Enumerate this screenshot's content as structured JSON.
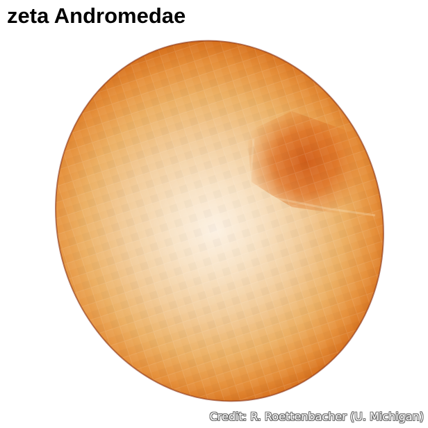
{
  "title": "zeta Andromedae",
  "credit": "Credit: R. Roettenbacher (U. Michigan)",
  "colors": {
    "background": "#ffffff",
    "title_text": "#000000",
    "star_highlight": "#fbeedd",
    "star_mid": "#f1c58b",
    "star_limb": "#e07a28",
    "star_edge": "#9a3c0e",
    "starspot": "#d9641e"
  }
}
